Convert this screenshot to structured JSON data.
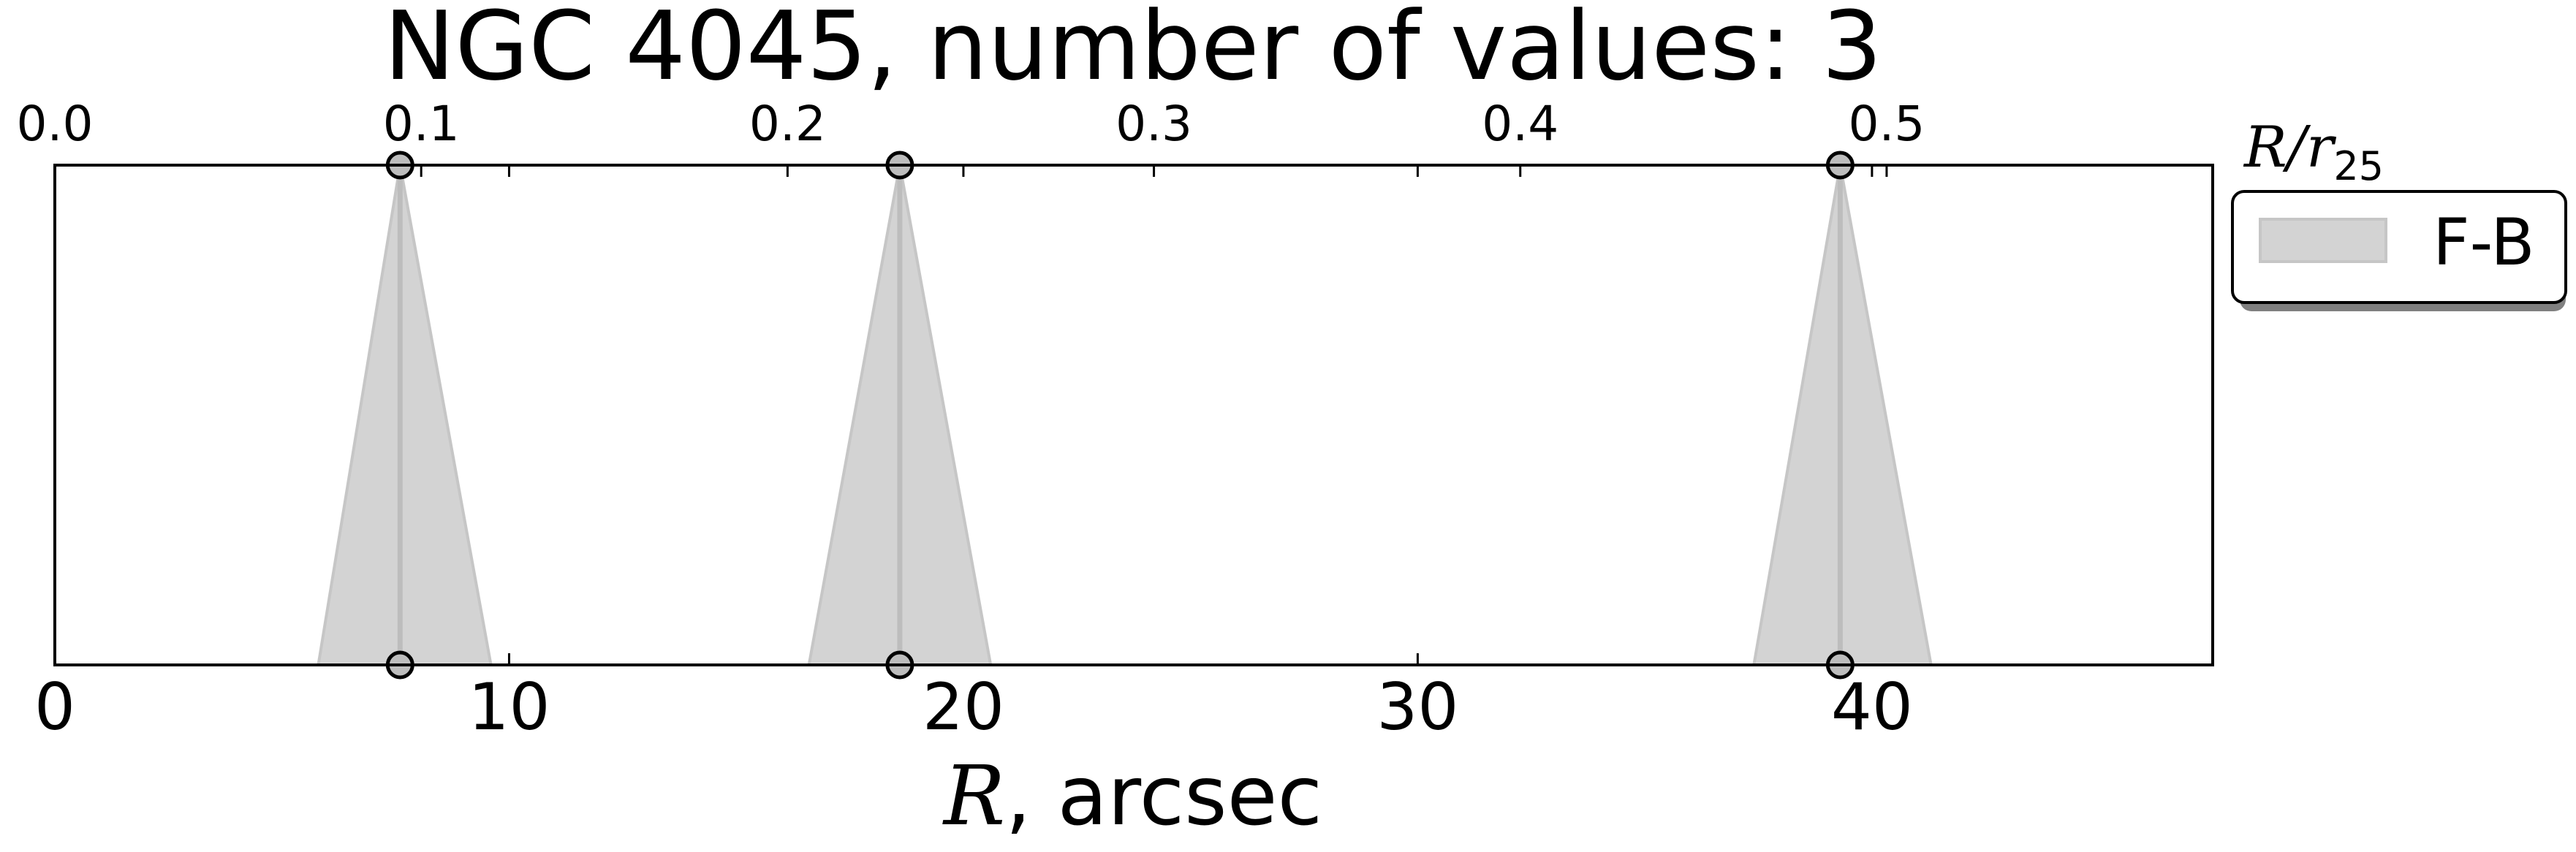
{
  "chart_data": {
    "type": "area",
    "title": "NGC 4045, number of values: 3",
    "xlabel": {
      "symbol": "R",
      "rest": ", arcsec"
    },
    "top_xlabel": {
      "symbol": "R",
      "slash": "/",
      "sub_symbol": "r",
      "subscript": "25"
    },
    "xlim": [
      0,
      47.5
    ],
    "top_xlim": [
      0.0,
      0.589
    ],
    "x_ticks": [
      0,
      10,
      20,
      30,
      40
    ],
    "x_tick_labels": [
      "0",
      "10",
      "20",
      "30",
      "40"
    ],
    "top_ticks": [
      0.0,
      0.1,
      0.2,
      0.3,
      0.4,
      0.5
    ],
    "top_tick_labels": [
      "0.0",
      "0.1",
      "0.2",
      "0.3",
      "0.4",
      "0.5"
    ],
    "grid": false,
    "legend_position": "outside-right-top",
    "series": [
      {
        "name": "F-B",
        "color": "#d3d3d3",
        "edge_color": "#c6c6c6",
        "marker_color": "#bdbdbd",
        "peaks": [
          {
            "x": 7.6,
            "base": [
              5.8,
              9.6
            ]
          },
          {
            "x": 18.6,
            "base": [
              16.6,
              20.6
            ]
          },
          {
            "x": 39.3,
            "base": [
              37.4,
              41.3
            ]
          }
        ]
      }
    ]
  }
}
